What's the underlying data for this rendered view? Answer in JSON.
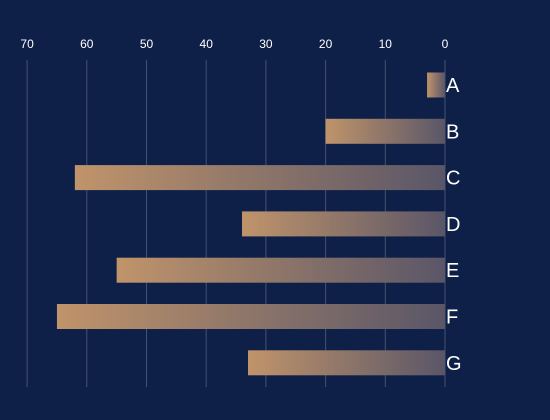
{
  "chart_data": {
    "type": "bar",
    "orientation": "horizontal",
    "x_axis_reversed": true,
    "x_axis_position": "top",
    "category_axis_position": "right",
    "title": "",
    "xlabel": "",
    "ylabel": "",
    "xlim": [
      0,
      70
    ],
    "x_ticks": [
      "70",
      "60",
      "50",
      "40",
      "30",
      "20",
      "10",
      "0"
    ],
    "categories": [
      "A",
      "B",
      "C",
      "D",
      "E",
      "F",
      "G"
    ],
    "values": [
      3,
      20,
      62,
      34,
      55,
      65,
      33
    ],
    "grid": true,
    "legend": "none",
    "colors": {
      "background": "#0f2048",
      "bar_gradient_outer": "#c0946a",
      "bar_gradient_inner": "#5a5668",
      "text": "#ffffff",
      "grid": "#ffffff"
    }
  }
}
